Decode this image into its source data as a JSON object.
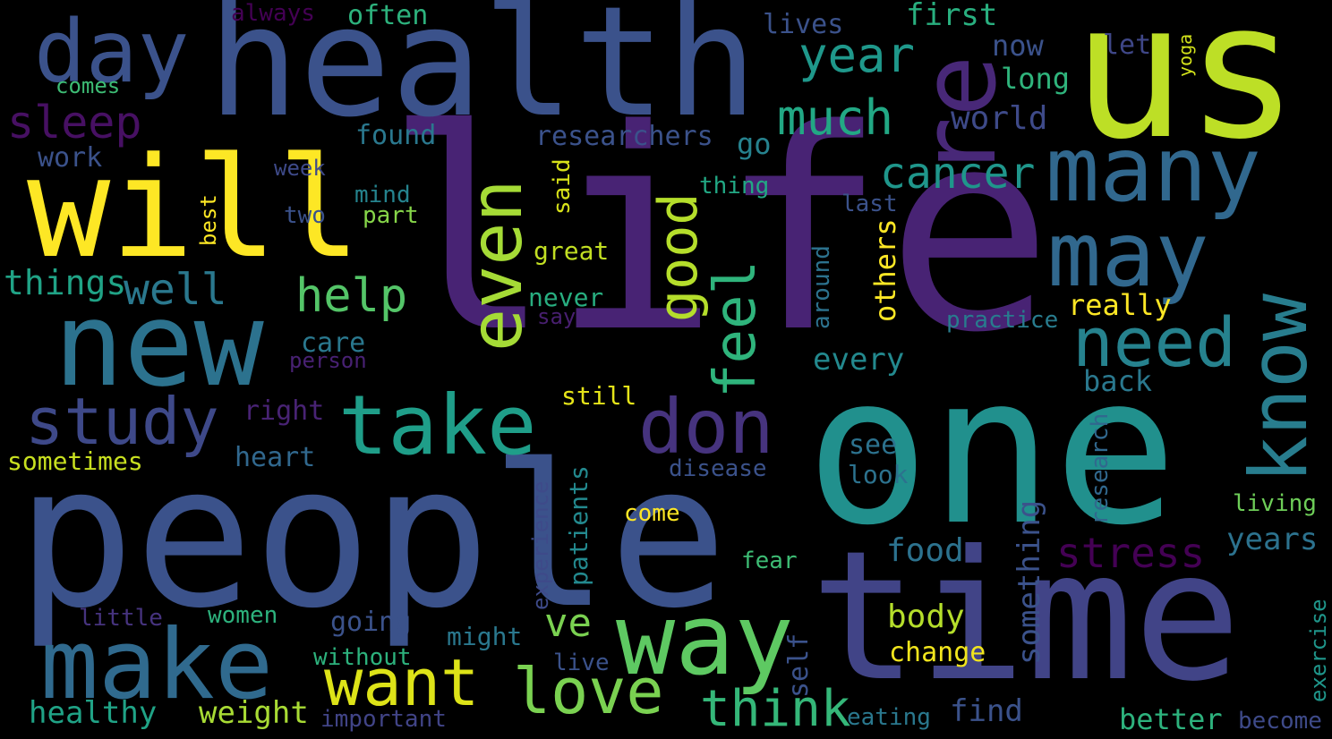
{
  "words": [
    {
      "text": "life",
      "color": "#482374",
      "vertical": false
    },
    {
      "text": "people",
      "color": "#3b528b",
      "vertical": false
    },
    {
      "text": "one",
      "color": "#21908d",
      "vertical": false
    },
    {
      "text": "time",
      "color": "#414487",
      "vertical": false
    },
    {
      "text": "health",
      "color": "#3b528b",
      "vertical": false
    },
    {
      "text": "us",
      "color": "#bddf26",
      "vertical": false
    },
    {
      "text": "will",
      "color": "#fde725",
      "vertical": false
    },
    {
      "text": "new",
      "color": "#2c728e",
      "vertical": false
    },
    {
      "text": "make",
      "color": "#306a8e",
      "vertical": false
    },
    {
      "text": "way",
      "color": "#5ec962",
      "vertical": false
    },
    {
      "text": "take",
      "color": "#1f9e89",
      "vertical": false
    },
    {
      "text": "many",
      "color": "#31688e",
      "vertical": false
    },
    {
      "text": "may",
      "color": "#31688e",
      "vertical": false
    },
    {
      "text": "day",
      "color": "#3b528b",
      "vertical": false
    },
    {
      "text": "re",
      "color": "#482878",
      "vertical": true
    },
    {
      "text": "even",
      "color": "#a5db36",
      "vertical": true
    },
    {
      "text": "know",
      "color": "#287d8e",
      "vertical": true
    },
    {
      "text": "need",
      "color": "#26828e",
      "vertical": false
    },
    {
      "text": "don",
      "color": "#46337e",
      "vertical": false
    },
    {
      "text": "study",
      "color": "#3e4989",
      "vertical": false
    },
    {
      "text": "want",
      "color": "#dde318",
      "vertical": false
    },
    {
      "text": "love",
      "color": "#7ad151",
      "vertical": false
    },
    {
      "text": "think",
      "color": "#35b779",
      "vertical": false
    },
    {
      "text": "feel",
      "color": "#2fb47c",
      "vertical": true
    },
    {
      "text": "good",
      "color": "#b5de2b",
      "vertical": true
    },
    {
      "text": "year",
      "color": "#1f988b",
      "vertical": false
    },
    {
      "text": "much",
      "color": "#22a884",
      "vertical": false
    },
    {
      "text": "cancer",
      "color": "#1f968b",
      "vertical": false
    },
    {
      "text": "help",
      "color": "#54c568",
      "vertical": false
    },
    {
      "text": "well",
      "color": "#2a788e",
      "vertical": false
    },
    {
      "text": "sleep",
      "color": "#471063",
      "vertical": false
    },
    {
      "text": "stress",
      "color": "#440154",
      "vertical": false
    },
    {
      "text": "ve",
      "color": "#7ad151",
      "vertical": false
    },
    {
      "text": "first",
      "color": "#29af7f",
      "vertical": false
    },
    {
      "text": "now",
      "color": "#3b528b",
      "vertical": false
    },
    {
      "text": "long",
      "color": "#2fb47c",
      "vertical": false
    },
    {
      "text": "let",
      "color": "#3f4788",
      "vertical": false
    },
    {
      "text": "yoga",
      "color": "#d2e21b",
      "vertical": true
    },
    {
      "text": "lives",
      "color": "#3b528b",
      "vertical": false
    },
    {
      "text": "often",
      "color": "#2db27d",
      "vertical": false
    },
    {
      "text": "always",
      "color": "#440154",
      "vertical": false
    },
    {
      "text": "comes",
      "color": "#3dbc74",
      "vertical": false
    },
    {
      "text": "world",
      "color": "#3e4a89",
      "vertical": false
    },
    {
      "text": "researchers",
      "color": "#3b528b",
      "vertical": false
    },
    {
      "text": "found",
      "color": "#2a788e",
      "vertical": false
    },
    {
      "text": "go",
      "color": "#26828e",
      "vertical": false
    },
    {
      "text": "work",
      "color": "#3b528b",
      "vertical": false
    },
    {
      "text": "week",
      "color": "#3e4a89",
      "vertical": false
    },
    {
      "text": "mind",
      "color": "#25838e",
      "vertical": false
    },
    {
      "text": "thing",
      "color": "#22a884",
      "vertical": false
    },
    {
      "text": "said",
      "color": "#d8e219",
      "vertical": true
    },
    {
      "text": "best",
      "color": "#fde725",
      "vertical": true
    },
    {
      "text": "two",
      "color": "#3b528b",
      "vertical": false
    },
    {
      "text": "part",
      "color": "#86d549",
      "vertical": false
    },
    {
      "text": "last",
      "color": "#3b528b",
      "vertical": false
    },
    {
      "text": "great",
      "color": "#c2df23",
      "vertical": false
    },
    {
      "text": "others",
      "color": "#fde725",
      "vertical": true
    },
    {
      "text": "around",
      "color": "#2c728e",
      "vertical": true
    },
    {
      "text": "things",
      "color": "#20a386",
      "vertical": false
    },
    {
      "text": "never",
      "color": "#28ae80",
      "vertical": false
    },
    {
      "text": "say",
      "color": "#481f70",
      "vertical": false
    },
    {
      "text": "practice",
      "color": "#287c8e",
      "vertical": false
    },
    {
      "text": "really",
      "color": "#fde725",
      "vertical": false
    },
    {
      "text": "care",
      "color": "#2a788e",
      "vertical": false
    },
    {
      "text": "person",
      "color": "#482173",
      "vertical": false
    },
    {
      "text": "every",
      "color": "#23898e",
      "vertical": false
    },
    {
      "text": "back",
      "color": "#2a788e",
      "vertical": false
    },
    {
      "text": "still",
      "color": "#e5e419",
      "vertical": false
    },
    {
      "text": "right",
      "color": "#482374",
      "vertical": false
    },
    {
      "text": "heart",
      "color": "#31688e",
      "vertical": false
    },
    {
      "text": "sometimes",
      "color": "#c8e020",
      "vertical": false
    },
    {
      "text": "see",
      "color": "#2c728e",
      "vertical": false
    },
    {
      "text": "look",
      "color": "#2c728e",
      "vertical": false
    },
    {
      "text": "disease",
      "color": "#3b528b",
      "vertical": false
    },
    {
      "text": "research",
      "color": "#31688e",
      "vertical": true
    },
    {
      "text": "experience",
      "color": "#3e4a89",
      "vertical": true
    },
    {
      "text": "patients",
      "color": "#23898e",
      "vertical": true
    },
    {
      "text": "come",
      "color": "#fde725",
      "vertical": false
    },
    {
      "text": "something",
      "color": "#3b528b",
      "vertical": true
    },
    {
      "text": "living",
      "color": "#6ece58",
      "vertical": false
    },
    {
      "text": "years",
      "color": "#2c728e",
      "vertical": false
    },
    {
      "text": "food",
      "color": "#2c728e",
      "vertical": false
    },
    {
      "text": "fear",
      "color": "#3dbc74",
      "vertical": false
    },
    {
      "text": "body",
      "color": "#b5de2b",
      "vertical": false
    },
    {
      "text": "change",
      "color": "#f1e51d",
      "vertical": false
    },
    {
      "text": "self",
      "color": "#3b528b",
      "vertical": true
    },
    {
      "text": "going",
      "color": "#3b528b",
      "vertical": false
    },
    {
      "text": "women",
      "color": "#2db27d",
      "vertical": false
    },
    {
      "text": "little",
      "color": "#46337e",
      "vertical": false
    },
    {
      "text": "might",
      "color": "#2a788e",
      "vertical": false
    },
    {
      "text": "without",
      "color": "#2db27d",
      "vertical": false
    },
    {
      "text": "live",
      "color": "#3b528b",
      "vertical": false
    },
    {
      "text": "exercise",
      "color": "#1f968b",
      "vertical": true
    },
    {
      "text": "healthy",
      "color": "#20a386",
      "vertical": false
    },
    {
      "text": "weight",
      "color": "#a8db34",
      "vertical": false
    },
    {
      "text": "important",
      "color": "#414487",
      "vertical": false
    },
    {
      "text": "eating",
      "color": "#2a788e",
      "vertical": false
    },
    {
      "text": "find",
      "color": "#3b528b",
      "vertical": false
    },
    {
      "text": "better",
      "color": "#2db27d",
      "vertical": false
    },
    {
      "text": "become",
      "color": "#3e4a89",
      "vertical": false
    }
  ]
}
